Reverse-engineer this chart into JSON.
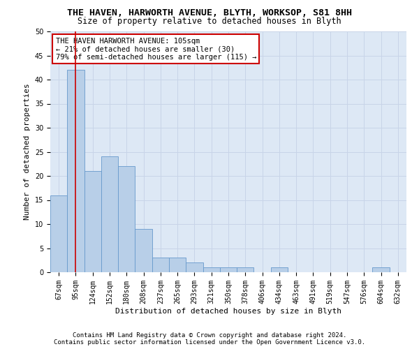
{
  "title": "THE HAVEN, HARWORTH AVENUE, BLYTH, WORKSOP, S81 8HH",
  "subtitle": "Size of property relative to detached houses in Blyth",
  "xlabel": "Distribution of detached houses by size in Blyth",
  "ylabel": "Number of detached properties",
  "footer1": "Contains HM Land Registry data © Crown copyright and database right 2024.",
  "footer2": "Contains public sector information licensed under the Open Government Licence v3.0.",
  "categories": [
    "67sqm",
    "95sqm",
    "124sqm",
    "152sqm",
    "180sqm",
    "208sqm",
    "237sqm",
    "265sqm",
    "293sqm",
    "321sqm",
    "350sqm",
    "378sqm",
    "406sqm",
    "434sqm",
    "463sqm",
    "491sqm",
    "519sqm",
    "547sqm",
    "576sqm",
    "604sqm",
    "632sqm"
  ],
  "values": [
    16,
    42,
    21,
    24,
    22,
    9,
    3,
    3,
    2,
    1,
    1,
    1,
    0,
    1,
    0,
    0,
    0,
    0,
    0,
    1,
    0
  ],
  "bar_color": "#b8cfe8",
  "bar_edge_color": "#6699cc",
  "annotation_text": "THE HAVEN HARWORTH AVENUE: 105sqm\n← 21% of detached houses are smaller (30)\n79% of semi-detached houses are larger (115) →",
  "vline_x": 1.0,
  "vline_color": "#cc0000",
  "ylim": [
    0,
    50
  ],
  "yticks": [
    0,
    5,
    10,
    15,
    20,
    25,
    30,
    35,
    40,
    45,
    50
  ],
  "annotation_box_facecolor": "#ffffff",
  "annotation_box_edgecolor": "#cc0000",
  "title_fontsize": 9.5,
  "subtitle_fontsize": 8.5,
  "axis_label_fontsize": 8,
  "tick_fontsize": 7,
  "annotation_fontsize": 7.5,
  "footer_fontsize": 6.5,
  "grid_color": "#c8d4e8",
  "background_color": "#dde8f5"
}
